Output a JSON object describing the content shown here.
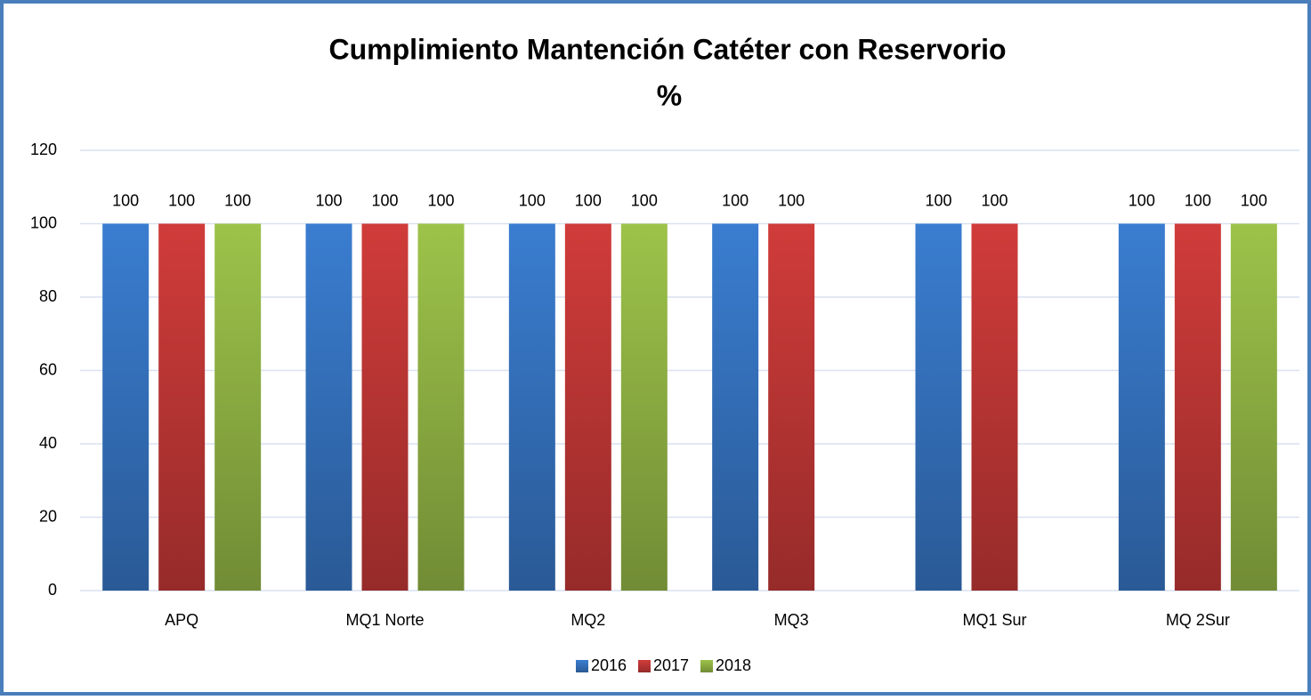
{
  "chart_data": {
    "type": "bar",
    "title": "Cumplimiento Mantención Catéter con Reservorio",
    "subtitle": "%",
    "categories": [
      "APQ",
      "MQ1 Norte",
      "MQ2",
      "MQ3",
      "MQ1 Sur",
      "MQ 2Sur"
    ],
    "series": [
      {
        "name": "2016",
        "color": "#3a7dd0",
        "values": [
          100,
          100,
          100,
          100,
          100,
          100
        ]
      },
      {
        "name": "2017",
        "color": "#d03c3a",
        "values": [
          100,
          100,
          100,
          100,
          100,
          100
        ]
      },
      {
        "name": "2018",
        "color": "#9dc34a",
        "values": [
          100,
          100,
          100,
          null,
          null,
          100
        ]
      }
    ],
    "ylim": [
      0,
      120
    ],
    "yticks": [
      0,
      20,
      40,
      60,
      80,
      100,
      120
    ],
    "grid": true,
    "legend": "bottom"
  }
}
